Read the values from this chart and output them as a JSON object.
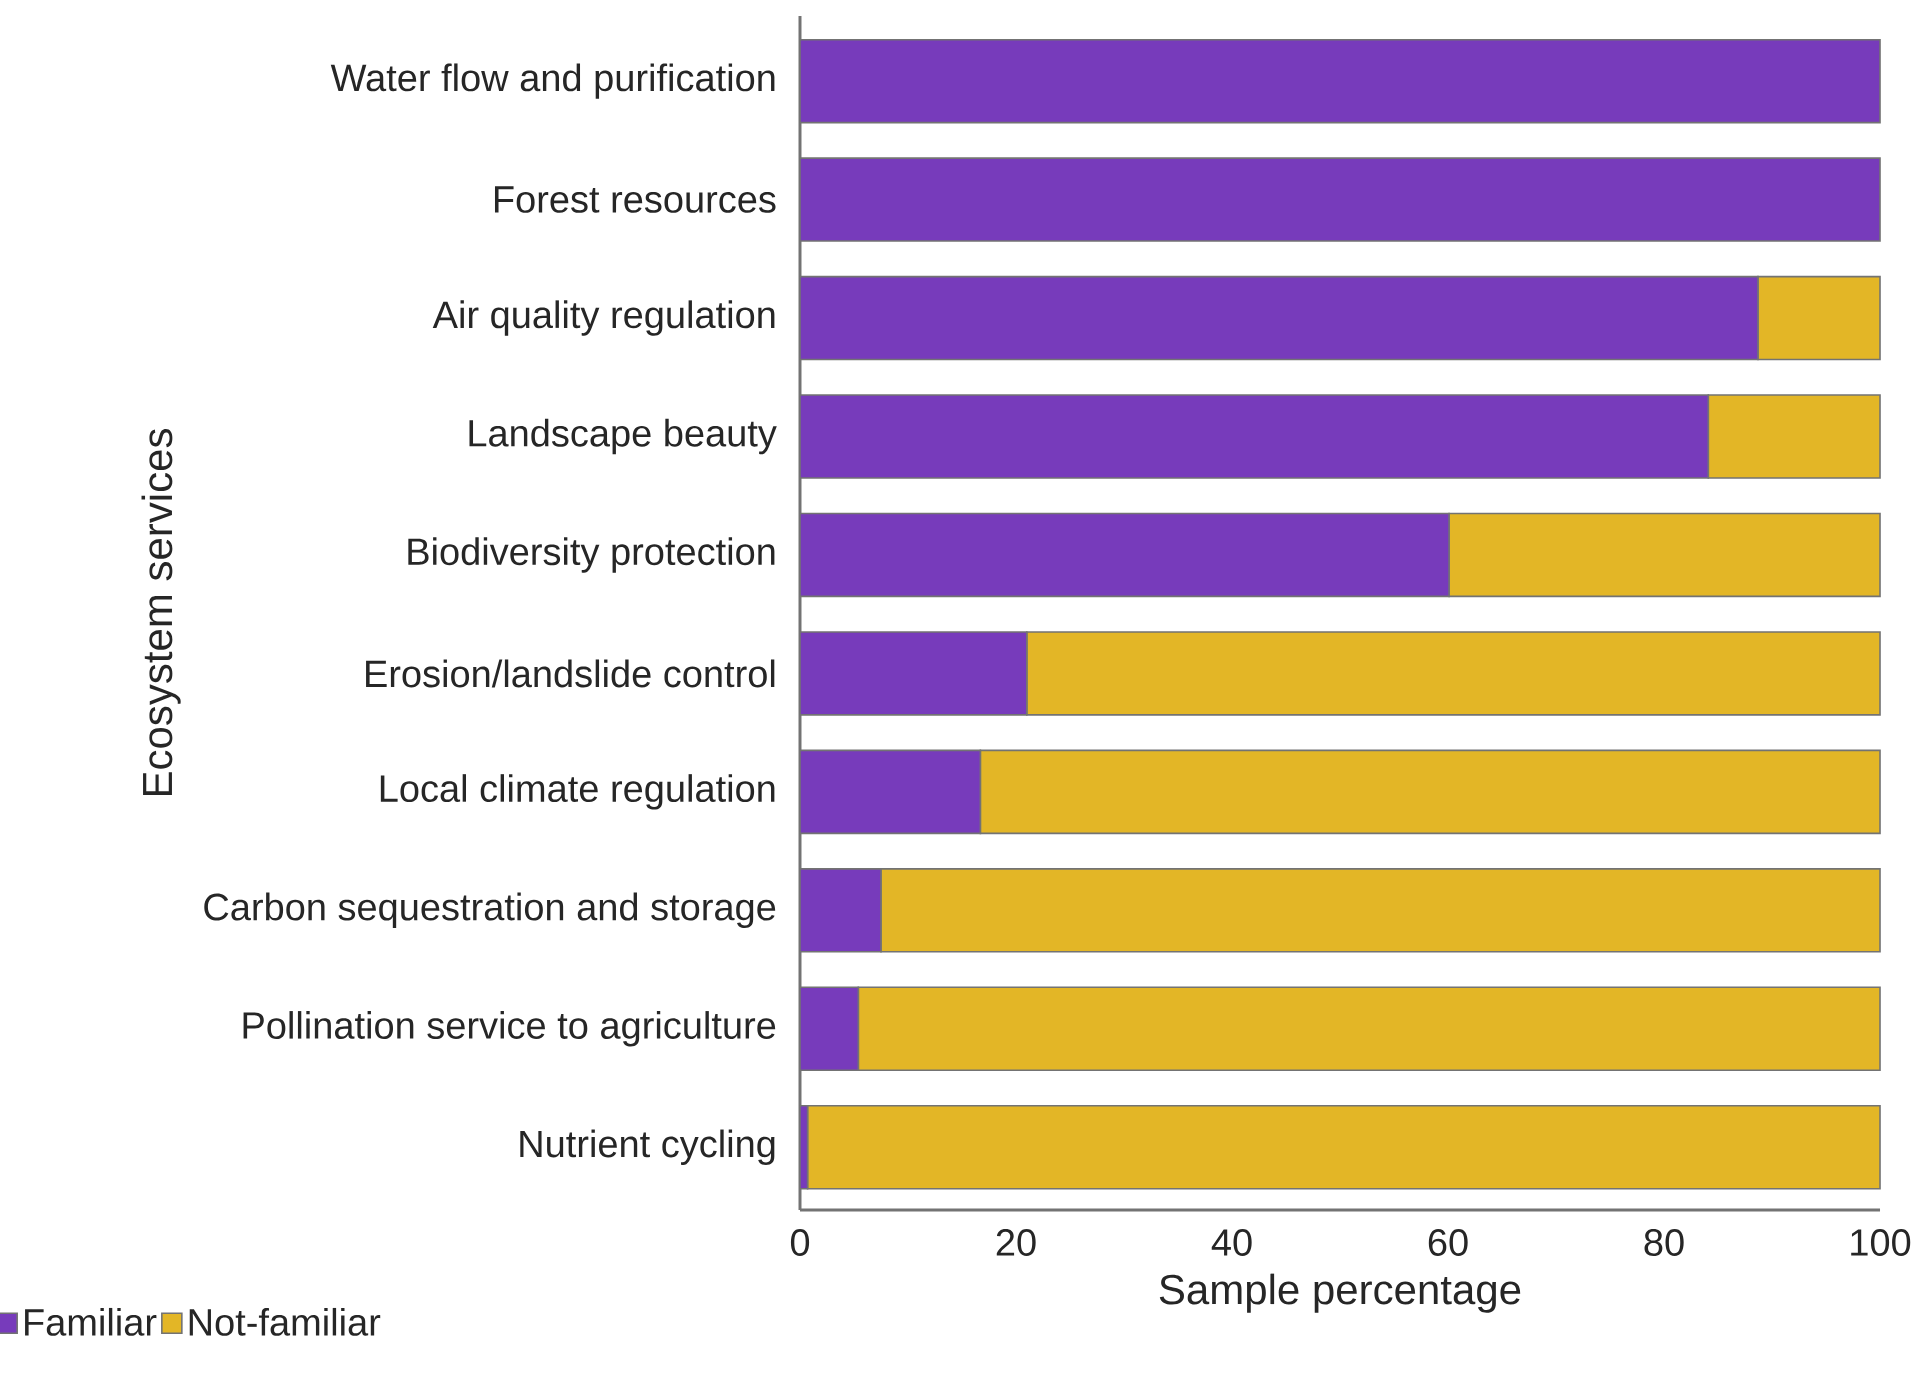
{
  "chart_data": {
    "type": "bar",
    "orientation": "horizontal",
    "stacked": true,
    "categories": [
      "Water flow and purification",
      "Forest resources",
      "Air quality regulation",
      "Landscape beauty",
      "Biodiversity protection",
      "Erosion/landslide control",
      "Local climate regulation",
      "Carbon sequestration and storage",
      "Pollination service to agriculture",
      "Nutrient cycling"
    ],
    "series": [
      {
        "name": "Familiar",
        "color": "#773bbb",
        "values": [
          100,
          100,
          88.7,
          84.1,
          60.1,
          21,
          16.7,
          7.5,
          5.4,
          0.7
        ]
      },
      {
        "name": "Not-familiar",
        "color": "#e3b626",
        "values": [
          0,
          0,
          11.3,
          15.9,
          39.9,
          79,
          83.3,
          92.5,
          94.6,
          99.3
        ]
      }
    ],
    "xlim": [
      0,
      100
    ],
    "xticks": [
      0,
      20,
      40,
      60,
      80,
      100
    ],
    "xlabel": "Sample percentage",
    "ylabel": "Ecosystem services",
    "legend": "bottom left",
    "grid": false
  }
}
